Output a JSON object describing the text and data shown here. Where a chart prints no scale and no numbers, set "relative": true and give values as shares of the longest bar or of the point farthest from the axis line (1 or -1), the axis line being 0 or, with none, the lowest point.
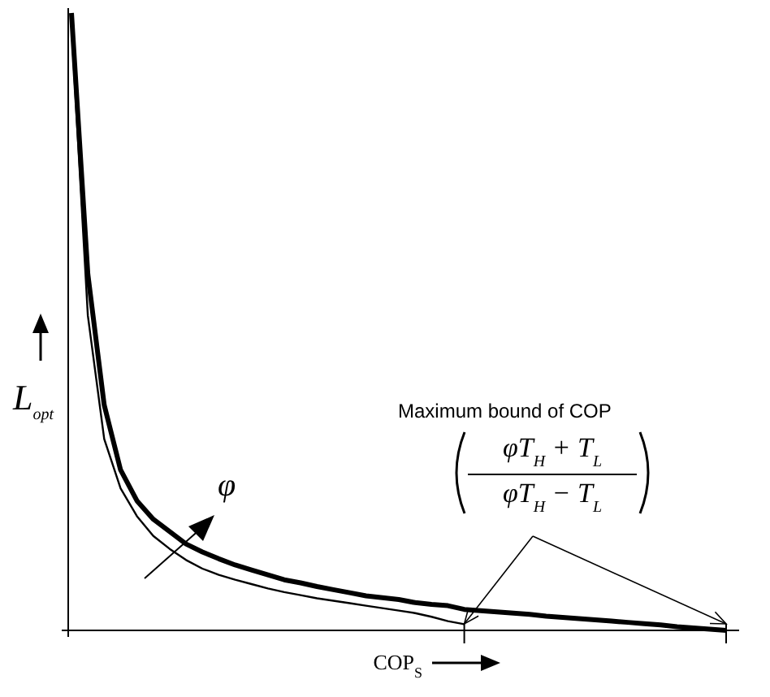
{
  "chart_data": {
    "type": "line",
    "relative": true,
    "xlabel": "COP$_{S}$",
    "ylabel": "L$_{opt}$",
    "categories": [
      null,
      null,
      null,
      null,
      null,
      null,
      null,
      null,
      null,
      null,
      null,
      null,
      null,
      null,
      null,
      null,
      null,
      null,
      null,
      null,
      null,
      null,
      null,
      null,
      null,
      null,
      null,
      null,
      null,
      null,
      null,
      null,
      null,
      null,
      null,
      null,
      null,
      null,
      null,
      null,
      null
    ],
    "series": [
      {
        "color": "#000000",
        "values": [
          1,
          0.577,
          0.365,
          0.26,
          0.21,
          0.18,
          0.16,
          0.14,
          0.127,
          0.116,
          0.106,
          0.098,
          0.09,
          0.082,
          0.077,
          0.071,
          0.066,
          0.061,
          0.056,
          0.053,
          0.05,
          0.045,
          0.042,
          0.04,
          0.034,
          0.032,
          0.03,
          0.028,
          0.026,
          0.023,
          0.021,
          0.019,
          0.017,
          0.015,
          0.013,
          0.011,
          0.009,
          0.006,
          0.004,
          0.002,
          0
        ]
      },
      {
        "color": "#000000",
        "values": [
          0.98,
          0.51,
          0.31,
          0.23,
          0.185,
          0.153,
          0.132,
          0.114,
          0.1,
          0.09,
          0.082,
          0.075,
          0.068,
          0.062,
          0.057,
          0.052,
          0.048,
          0.044,
          0.04,
          0.036,
          0.032,
          0.028,
          0.022,
          0.015,
          0.01,
          null,
          null,
          null,
          null,
          null,
          null,
          null,
          null,
          null,
          null,
          null,
          null,
          null,
          null,
          null,
          null
        ]
      }
    ],
    "marker": "none",
    "line_style": "solid",
    "grid": false,
    "annotations": [
      "Maximum bound of COP",
      "φT$_{H}$ + T$_{L}$",
      "φT$_{H}$ − T$_{L}$",
      "φ"
    ]
  }
}
